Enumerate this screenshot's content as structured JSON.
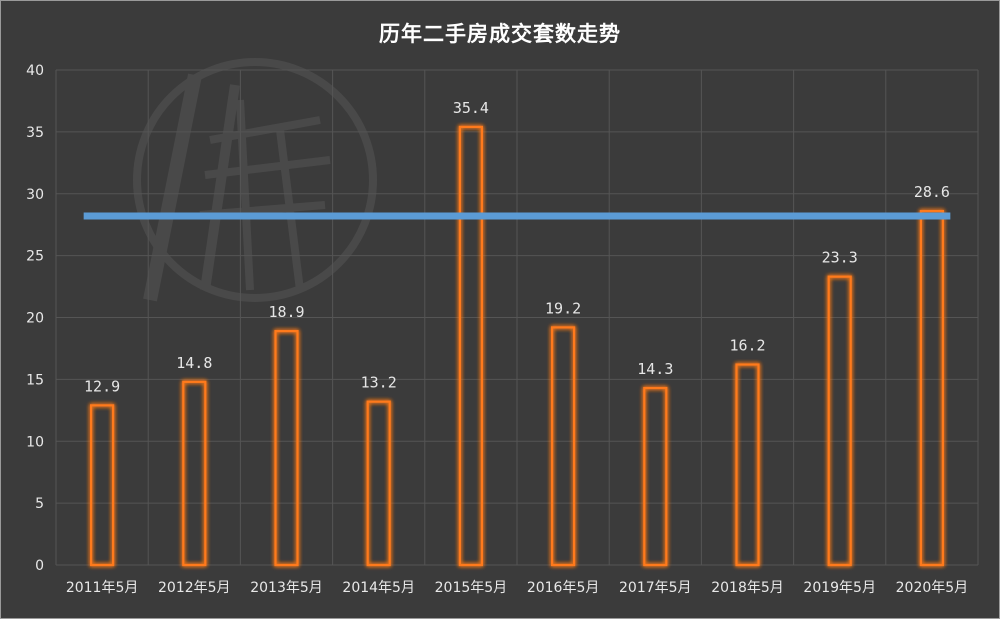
{
  "chart_data": {
    "type": "bar",
    "title": "历年二手房成交套数走势",
    "categories": [
      "2011年5月",
      "2012年5月",
      "2013年5月",
      "2014年5月",
      "2015年5月",
      "2016年5月",
      "2017年5月",
      "2018年5月",
      "2019年5月",
      "2020年5月"
    ],
    "values": [
      12.9,
      14.8,
      18.9,
      13.2,
      35.4,
      19.2,
      14.3,
      16.2,
      23.3,
      28.6
    ],
    "value_labels": [
      "12.9",
      "14.8",
      "18.9",
      "13.2",
      "35.4",
      "19.2",
      "14.3",
      "16.2",
      "23.3",
      "28.6"
    ],
    "reference_line": 28.2,
    "ylim": [
      0,
      40
    ],
    "yticks": [
      "0",
      "5",
      "10",
      "15",
      "20",
      "25",
      "30",
      "35",
      "40"
    ],
    "grid": true,
    "legend": "none",
    "colors": {
      "background": "#3b3b3b",
      "bar_outline": "#ff7a1a",
      "bar_glow": "#ff8c2a",
      "reference_line": "#5b9bd5",
      "grid": "#555555"
    }
  }
}
